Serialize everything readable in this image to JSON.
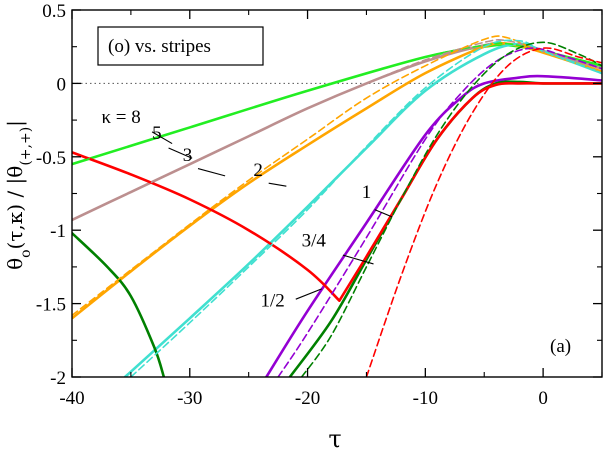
{
  "chart_data": {
    "type": "line",
    "title": "",
    "panel_label": "(a)",
    "legend_box_text": "(o) vs. stripes",
    "xlabel": "τ",
    "ylabel": "θ_o(τ,κ) / |θ_(+,+)|",
    "xlim": [
      -40,
      5
    ],
    "ylim": [
      -2,
      0.5
    ],
    "x_ticks": [
      -40,
      -30,
      -20,
      -10,
      0
    ],
    "x_tick_labels": [
      "-40",
      "-30",
      "-20",
      "-10",
      "0"
    ],
    "y_ticks": [
      0.5,
      0,
      -0.5,
      -1,
      -1.5,
      -2
    ],
    "y_tick_labels": [
      "0.5",
      "0",
      "-0.5",
      "-1",
      "-1.5",
      "-2"
    ],
    "reference_line": {
      "y": 0,
      "style": "dotted"
    },
    "colors": {
      "k8": "#22ee22",
      "k5": "#bc8f8f",
      "k3": "#ffa500",
      "k2": "#40e0d0",
      "k1": "#9400d3",
      "k34": "#008000",
      "k12": "#ff0000"
    },
    "series": [
      {
        "name": "κ = 8",
        "key": "k8",
        "style": "solid",
        "x": [
          -40,
          -30,
          -20,
          -10,
          -5,
          -3,
          0,
          5
        ],
        "y": [
          -0.55,
          -0.3,
          -0.05,
          0.18,
          0.25,
          0.26,
          0.22,
          0.12
        ]
      },
      {
        "name": "κ = 8 (dashed)",
        "key": "k8",
        "style": "dashed",
        "x": [
          -40,
          -30,
          -20,
          -10,
          -5,
          -3,
          0,
          5
        ],
        "y": [
          -0.55,
          -0.3,
          -0.05,
          0.18,
          0.26,
          0.27,
          0.22,
          0.12
        ]
      },
      {
        "name": "5",
        "key": "k5",
        "style": "solid",
        "x": [
          -40,
          -35,
          -30,
          -25,
          -20,
          -15,
          -10,
          -5,
          -3,
          0,
          5
        ],
        "y": [
          -0.93,
          -0.74,
          -0.55,
          -0.36,
          -0.17,
          0.0,
          0.15,
          0.26,
          0.27,
          0.22,
          0.1
        ]
      },
      {
        "name": "5 (dashed)",
        "key": "k5",
        "style": "dashed",
        "x": [
          -40,
          -35,
          -30,
          -25,
          -20,
          -15,
          -10,
          -5,
          -3,
          0,
          5
        ],
        "y": [
          -0.93,
          -0.74,
          -0.55,
          -0.36,
          -0.17,
          0.0,
          0.16,
          0.28,
          0.29,
          0.22,
          0.1
        ]
      },
      {
        "name": "3",
        "key": "k3",
        "style": "solid",
        "x": [
          -40,
          -35,
          -30,
          -25,
          -20,
          -15,
          -10,
          -5,
          -3,
          0,
          5
        ],
        "y": [
          -1.6,
          -1.28,
          -0.97,
          -0.68,
          -0.42,
          -0.17,
          0.07,
          0.25,
          0.27,
          0.21,
          0.08
        ]
      },
      {
        "name": "3 (dashed)",
        "key": "k3",
        "style": "dashed",
        "x": [
          -40,
          -35,
          -30,
          -25,
          -20,
          -15,
          -10,
          -5,
          -3,
          0,
          5
        ],
        "y": [
          -1.58,
          -1.27,
          -0.96,
          -0.66,
          -0.38,
          -0.1,
          0.12,
          0.3,
          0.31,
          0.21,
          0.08
        ]
      },
      {
        "name": "2",
        "key": "k2",
        "style": "solid",
        "x": [
          -35.5,
          -30,
          -25,
          -20,
          -15,
          -10,
          -5,
          -2,
          0,
          5
        ],
        "y": [
          -2.0,
          -1.6,
          -1.23,
          -0.84,
          -0.44,
          -0.05,
          0.2,
          0.27,
          0.22,
          0.07
        ]
      },
      {
        "name": "2 (dashed)",
        "key": "k2",
        "style": "dashed",
        "x": [
          -35.0,
          -30,
          -25,
          -20,
          -15,
          -10,
          -5,
          -2,
          0,
          5
        ],
        "y": [
          -2.0,
          -1.63,
          -1.25,
          -0.86,
          -0.43,
          -0.03,
          0.25,
          0.29,
          0.22,
          0.07
        ]
      },
      {
        "name": "1",
        "key": "k1",
        "style": "solid",
        "x": [
          -23.5,
          -20,
          -15,
          -10,
          -7,
          -5,
          -2,
          -0.5,
          2,
          5
        ],
        "y": [
          -2.0,
          -1.55,
          -0.95,
          -0.35,
          -0.1,
          0.0,
          0.04,
          0.05,
          0.04,
          0.02
        ]
      },
      {
        "name": "1 (dashed)",
        "key": "k1",
        "style": "dashed",
        "x": [
          -22.5,
          -20,
          -15,
          -10,
          -7,
          -4,
          -1,
          2,
          5
        ],
        "y": [
          -2.0,
          -1.7,
          -1.05,
          -0.38,
          -0.07,
          0.15,
          0.24,
          0.18,
          0.1
        ]
      },
      {
        "name": "3/4",
        "key": "k34",
        "style": "solid",
        "x": [
          -21.5,
          -18,
          -15,
          -12,
          -9,
          -6,
          -4,
          -2,
          0,
          5
        ],
        "y": [
          -2.0,
          -1.62,
          -1.2,
          -0.78,
          -0.38,
          -0.1,
          0.0,
          0.01,
          0.0,
          0.0
        ]
      },
      {
        "name": "3/4 (dashed)",
        "key": "k34",
        "style": "dashed",
        "x": [
          -20.5,
          -18,
          -15,
          -12,
          -9,
          -6,
          -3,
          0,
          3,
          5
        ],
        "y": [
          -2.0,
          -1.72,
          -1.25,
          -0.78,
          -0.35,
          -0.02,
          0.2,
          0.28,
          0.2,
          0.12
        ]
      },
      {
        "name": "1/2",
        "key": "k12",
        "style": "solid",
        "x": [
          -40,
          -35,
          -30,
          -25,
          -20,
          -17.3,
          -15,
          -12,
          -9,
          -6,
          -4,
          -2,
          0,
          5
        ],
        "y": [
          -0.47,
          -0.62,
          -0.79,
          -1.0,
          -1.27,
          -1.48,
          -1.18,
          -0.78,
          -0.38,
          -0.1,
          -0.01,
          0.0,
          0.0,
          0.0
        ]
      },
      {
        "name": "1/2 (dashed)",
        "key": "k12",
        "style": "dashed",
        "x": [
          -15,
          -12,
          -9,
          -6,
          -3,
          0,
          3,
          5
        ],
        "y": [
          -2.0,
          -1.3,
          -0.68,
          -0.2,
          0.12,
          0.24,
          0.18,
          0.14
        ]
      },
      {
        "name": "1/2 branch",
        "key": "k34",
        "style": "solid",
        "x": [
          -40,
          -37,
          -35,
          -33,
          -32.2
        ],
        "y": [
          -1.02,
          -1.25,
          -1.45,
          -1.8,
          -2.0
        ]
      }
    ],
    "curve_labels": [
      {
        "text": "κ = 8",
        "key": "k8",
        "x": -37.5,
        "y": -0.27,
        "leader": [
          -33.2,
          -0.33,
          -31.5,
          -0.41
        ]
      },
      {
        "text": "5",
        "key": "k5",
        "x": -33.2,
        "y": -0.38,
        "leader": [
          -31.8,
          -0.44,
          -29.8,
          -0.51
        ]
      },
      {
        "text": "3",
        "key": "k3",
        "x": -30.6,
        "y": -0.53,
        "leader": [
          -29.3,
          -0.58,
          -27.0,
          -0.63
        ]
      },
      {
        "text": "2",
        "key": "k2",
        "x": -24.6,
        "y": -0.63,
        "leader": [
          -23.3,
          -0.68,
          -21.8,
          -0.7
        ]
      },
      {
        "text": "1",
        "key": "k1",
        "x": -15.4,
        "y": -0.78,
        "leader": [
          -14.3,
          -0.86,
          -12.8,
          -0.91
        ]
      },
      {
        "text": "3/4",
        "key": "k34",
        "x": -20.5,
        "y": -1.11,
        "leader": [
          -17.0,
          -1.17,
          -14.4,
          -1.23
        ]
      },
      {
        "text": "1/2",
        "key": "k12",
        "x": -24.0,
        "y": -1.52,
        "leader": [
          -21.0,
          -1.47,
          -18.8,
          -1.4
        ]
      }
    ]
  }
}
